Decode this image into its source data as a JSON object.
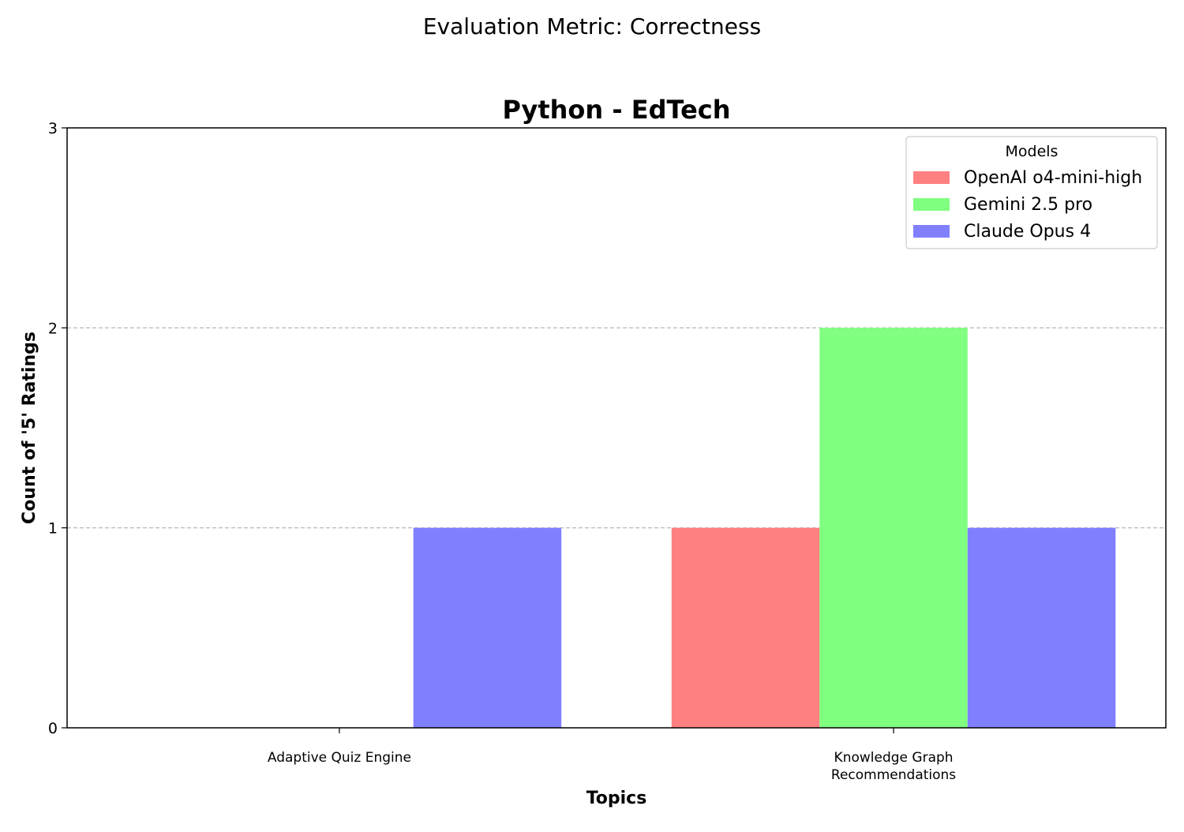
{
  "suptitle": "Evaluation Metric: Correctness",
  "chart_data": {
    "type": "bar",
    "title": "Python - EdTech",
    "xlabel": "Topics",
    "ylabel": "Count of '5' Ratings",
    "categories": [
      [
        "Adaptive Quiz Engine"
      ],
      [
        "Knowledge Graph",
        "Recommendations"
      ]
    ],
    "series": [
      {
        "name": "OpenAI o4-mini-high",
        "color": "#ff8080",
        "values": [
          0,
          1
        ]
      },
      {
        "name": "Gemini 2.5 pro",
        "color": "#80ff80",
        "values": [
          0,
          2
        ]
      },
      {
        "name": "Claude Opus 4",
        "color": "#8080ff",
        "values": [
          1,
          1
        ]
      }
    ],
    "ylim": [
      0,
      3
    ],
    "yticks": [
      0,
      1,
      2,
      3
    ],
    "grid": "y-dashed",
    "legend": {
      "title": "Models",
      "placement": "top-right"
    }
  }
}
